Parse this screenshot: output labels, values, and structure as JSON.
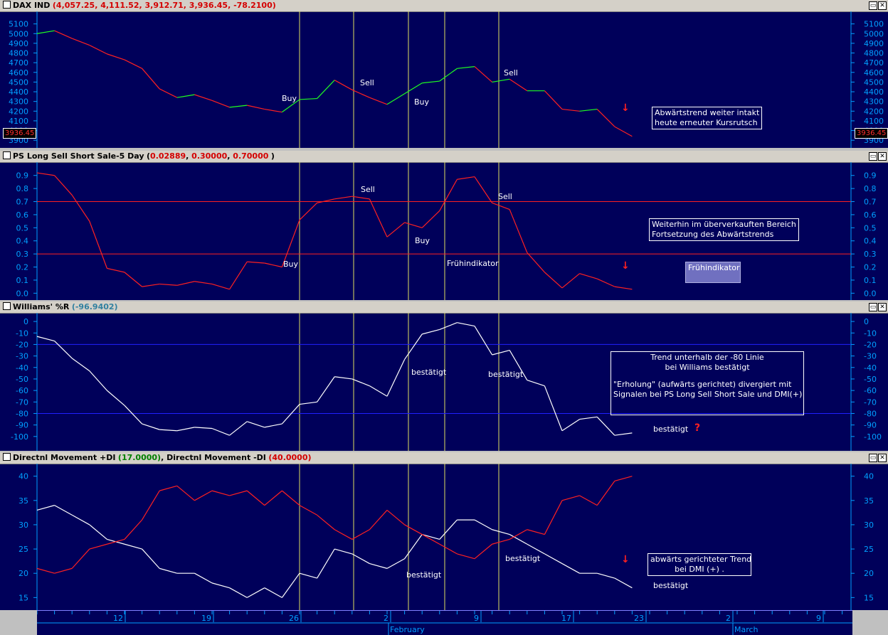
{
  "colors": {
    "bg": "#00005a",
    "axis": "#00a0ff",
    "red": "#ff2020",
    "green": "#20ff20",
    "white": "#ffffff",
    "vline": "#e0e060",
    "hline_red": "#ff2020",
    "hline_blue": "#2020ff"
  },
  "panels": {
    "dax": {
      "name": "DAX IND",
      "values": "(4,057.25, 4,111.52, 3,912.71, 3,936.45, -78.2100)",
      "last_price": "3936.45",
      "notes": {
        "trend": [
          "Abwärtstrend weiter intakt",
          "heute erneuter Kursrutsch"
        ]
      },
      "labels": {
        "buy1": "Buy",
        "sell1": "Sell",
        "buy2": "Buy",
        "sell2": "Sell"
      }
    },
    "ps": {
      "name": "PS Long Sell Short Sale-5 Day",
      "values_open": "(",
      "v1": "0.02889",
      "v2": "0.30000",
      "v3": "0.70000",
      "values_close": ")",
      "notes": {
        "overbought": [
          "Weiterhin im überverkauften Bereich",
          "Fortsetzung des Abwärtstrends"
        ],
        "early": "Frühindikator"
      },
      "labels": {
        "sell1": "Sell",
        "sell2": "Sell",
        "buy1": "Buy",
        "buy2": "Buy",
        "early": "Frühindikator"
      }
    },
    "williams": {
      "name": "Williams' %R",
      "values": "(-96.9402)",
      "notes": {
        "trend": [
          "Trend unterhalb der -80 Linie",
          "bei Williams bestätigt",
          "",
          "\"Erholung\" (aufwärts gerichtet) divergiert mit",
          "Signalen bei PS Long Sell Short Sale und DMI(+)"
        ]
      },
      "labels": {
        "c1": "bestätigt",
        "c2": "bestätigt",
        "c3": "bestätigt",
        "q": "?"
      }
    },
    "dmi": {
      "name_plus": "Directnl Movement +DI",
      "val_plus": "(17.0000)",
      "sep": ", ",
      "name_minus": "Directnl Movement -DI",
      "val_minus": "(40.0000)",
      "notes": {
        "trend": [
          "abwärts gerichteter Trend",
          "bei DMI (+) ."
        ]
      },
      "labels": {
        "c1": "bestätigt",
        "c2": "bestätigt",
        "c3": "bestätigt"
      }
    }
  },
  "xaxis": {
    "days": [
      "12",
      "19",
      "26",
      "2",
      "9",
      "17",
      "23",
      "2",
      "9"
    ],
    "months": [
      "February",
      "March"
    ]
  },
  "chart_data": [
    {
      "type": "line",
      "title": "DAX IND",
      "ylim": [
        3850,
        5200
      ],
      "yticks": [
        5100,
        5000,
        4900,
        4800,
        4700,
        4600,
        4500,
        4400,
        4300,
        4200,
        4100,
        4000,
        3900
      ],
      "series": [
        {
          "values": [
            5000,
            5030,
            4950,
            4880,
            4790,
            4730,
            4640,
            4430,
            4340,
            4370,
            4310,
            4240,
            4260,
            4220,
            4190,
            4320,
            4330,
            4520,
            4420,
            4340,
            4270,
            4380,
            4490,
            4510,
            4640,
            4660,
            4500,
            4530,
            4410,
            4410,
            4220,
            4200,
            4220,
            4040,
            3940
          ]
        }
      ]
    },
    {
      "type": "line",
      "title": "PS Long Sell Short Sale-5 Day",
      "ylim": [
        -0.02,
        0.98
      ],
      "yticks": [
        0.9,
        0.8,
        0.7,
        0.6,
        0.5,
        0.4,
        0.3,
        0.2,
        0.1,
        0.0
      ],
      "series": [
        {
          "values": [
            0.92,
            0.9,
            0.75,
            0.55,
            0.19,
            0.16,
            0.05,
            0.07,
            0.06,
            0.09,
            0.07,
            0.03,
            0.24,
            0.23,
            0.2,
            0.56,
            0.69,
            0.72,
            0.74,
            0.72,
            0.43,
            0.54,
            0.5,
            0.63,
            0.87,
            0.89,
            0.69,
            0.64,
            0.31,
            0.16,
            0.04,
            0.15,
            0.11,
            0.05,
            0.03
          ]
        }
      ]
    },
    {
      "type": "line",
      "title": "Williams' %R",
      "ylim": [
        -110,
        5
      ],
      "yticks": [
        0,
        -10,
        -20,
        -30,
        -40,
        -50,
        -60,
        -70,
        -80,
        -90,
        -100
      ],
      "series": [
        {
          "values": [
            -13,
            -17,
            -32,
            -43,
            -60,
            -73,
            -89,
            -94,
            -95,
            -92,
            -93,
            -99,
            -87,
            -92,
            -89,
            -72,
            -70,
            -48,
            -50,
            -56,
            -65,
            -33,
            -11,
            -7,
            -1,
            -4,
            -29,
            -25,
            -51,
            -56,
            -95,
            -85,
            -83,
            -99,
            -96.94
          ]
        }
      ]
    },
    {
      "type": "line",
      "title": "Directnl Movement",
      "ylim": [
        13,
        42
      ],
      "yticks": [
        40,
        35,
        30,
        25,
        20,
        15
      ],
      "series": [
        {
          "name": "Directnl Movement +DI",
          "values": [
            33,
            34,
            32,
            30,
            27,
            26,
            25,
            21,
            20,
            20,
            18,
            17,
            15,
            17,
            15,
            20,
            19,
            25,
            24,
            22,
            21,
            23,
            28,
            27,
            31,
            31,
            29,
            28,
            26,
            24,
            22,
            20,
            20,
            19,
            17
          ]
        },
        {
          "name": "Directnl Movement -DI",
          "values": [
            21,
            20,
            21,
            25,
            26,
            27,
            31,
            37,
            38,
            35,
            37,
            36,
            37,
            34,
            37,
            34,
            32,
            29,
            27,
            29,
            33,
            30,
            28,
            26,
            24,
            23,
            26,
            27,
            29,
            28,
            35,
            36,
            34,
            39,
            40
          ]
        }
      ]
    }
  ]
}
